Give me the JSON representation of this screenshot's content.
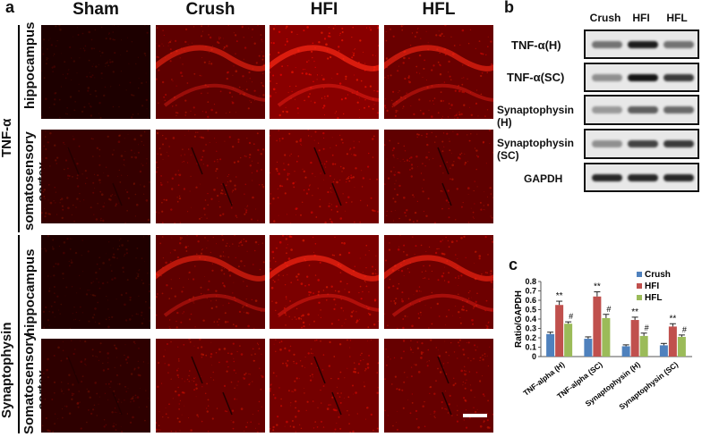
{
  "panels": {
    "a": "a",
    "b": "b",
    "c": "c"
  },
  "panel_a": {
    "columns": [
      "Sham",
      "Crush",
      "HFI",
      "HFL"
    ],
    "groups": [
      "TNF-α",
      "Synaptophysin"
    ],
    "regions": [
      "hippocampus",
      "somatosensory",
      "cortex",
      "hippocampus",
      "Somatosensory",
      "cortex"
    ]
  },
  "panel_b": {
    "lanes": [
      "Crush",
      "HFI",
      "HFL"
    ],
    "rows": [
      "TNF-α(H)",
      "TNF-α(SC)",
      "Synaptophysin",
      "(H)",
      "Synaptophysin",
      "(SC)",
      "GAPDH"
    ]
  },
  "chart_data": {
    "type": "bar",
    "categories": [
      "TNF-alpha (H)",
      "TNF-alpha (SC)",
      "Synaptophysin (H)",
      "Synaptophysin (SC)"
    ],
    "series": [
      {
        "name": "Crush",
        "values": [
          0.24,
          0.19,
          0.11,
          0.12
        ],
        "errors": [
          0.02,
          0.02,
          0.015,
          0.02
        ],
        "color": "#4f81bd"
      },
      {
        "name": "HFI",
        "values": [
          0.55,
          0.64,
          0.39,
          0.32
        ],
        "errors": [
          0.04,
          0.05,
          0.03,
          0.03
        ],
        "color": "#c0504d"
      },
      {
        "name": "HFL",
        "values": [
          0.35,
          0.41,
          0.22,
          0.21
        ],
        "errors": [
          0.02,
          0.04,
          0.03,
          0.02
        ],
        "color": "#9bbb59"
      }
    ],
    "annotations": {
      "HFI": "**",
      "HFL": "#"
    },
    "ylabel": "Ratio/GAPDH",
    "ylim": [
      0,
      0.8
    ],
    "yticks": [
      "0",
      "0.1",
      "0.2",
      "0.3",
      "0.4",
      "0.5",
      "0.6",
      "0.7",
      "0.8"
    ],
    "legend": "top-right"
  },
  "colors": {
    "stain": "#e01010",
    "tissue_bg": "#120000",
    "blot_bg": "#e8e8e8"
  }
}
